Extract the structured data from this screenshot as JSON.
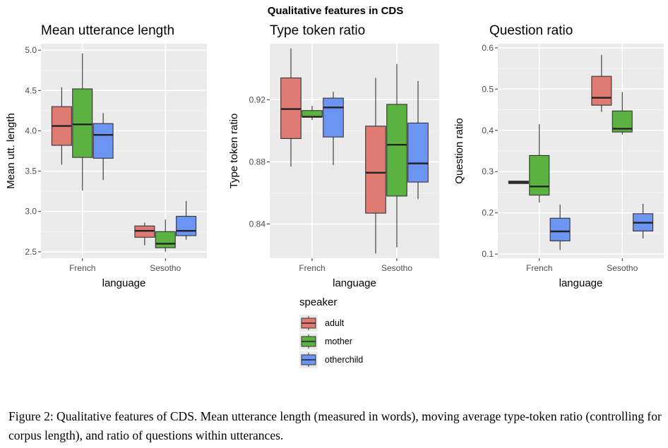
{
  "figure_title": "Qualitative features in CDS",
  "caption": "Figure 2: Qualitative features of CDS. Mean utterance length (measured in words), moving average type-token ratio (controlling for corpus length), and ratio of questions within utterances.",
  "legend": {
    "title": "speaker",
    "placement": "bottom-center",
    "items": [
      {
        "label": "adult",
        "color": "#E07B73"
      },
      {
        "label": "mother",
        "color": "#5BB240"
      },
      {
        "label": "otherchild",
        "color": "#6C94F2"
      }
    ]
  },
  "chart_data": [
    {
      "type": "box",
      "title": "Mean utterance length",
      "xlabel": "language",
      "ylabel": "Mean utt. length",
      "categories": [
        "French",
        "Sesotho"
      ],
      "ylim": [
        2.42,
        5.08
      ],
      "yticks": [
        2.5,
        3.0,
        3.5,
        4.0,
        4.5,
        5.0
      ],
      "ytick_labels": [
        "2.5",
        "3.0",
        "3.5",
        "4.0",
        "4.5",
        "5.0"
      ],
      "grid": true,
      "series": [
        {
          "name": "adult",
          "boxes": [
            {
              "min": 3.58,
              "q1": 3.82,
              "median": 4.06,
              "q3": 4.3,
              "max": 4.54
            },
            {
              "min": 2.58,
              "q1": 2.68,
              "median": 2.76,
              "q3": 2.82,
              "max": 2.86
            }
          ]
        },
        {
          "name": "mother",
          "boxes": [
            {
              "min": 3.26,
              "q1": 3.67,
              "median": 4.08,
              "q3": 4.52,
              "max": 4.96
            },
            {
              "min": 2.5,
              "q1": 2.55,
              "median": 2.6,
              "q3": 2.75,
              "max": 2.9
            }
          ]
        },
        {
          "name": "otherchild",
          "boxes": [
            {
              "min": 3.39,
              "q1": 3.66,
              "median": 3.95,
              "q3": 4.09,
              "max": 4.22
            },
            {
              "min": 2.65,
              "q1": 2.7,
              "median": 2.76,
              "q3": 2.94,
              "max": 3.13
            }
          ]
        }
      ]
    },
    {
      "type": "box",
      "title": "Type token ratio",
      "xlabel": "language",
      "ylabel": "Type token ratio",
      "categories": [
        "French",
        "Sesotho"
      ],
      "ylim": [
        0.818,
        0.956
      ],
      "yticks": [
        0.84,
        0.88,
        0.92
      ],
      "ytick_labels": [
        "0.84",
        "0.88",
        "0.92"
      ],
      "grid": true,
      "series": [
        {
          "name": "adult",
          "boxes": [
            {
              "min": 0.877,
              "q1": 0.895,
              "median": 0.914,
              "q3": 0.934,
              "max": 0.953
            },
            {
              "min": 0.821,
              "q1": 0.847,
              "median": 0.873,
              "q3": 0.903,
              "max": 0.934
            }
          ]
        },
        {
          "name": "mother",
          "boxes": [
            {
              "min": 0.907,
              "q1": 0.909,
              "median": 0.909,
              "q3": 0.913,
              "max": 0.916
            },
            {
              "min": 0.825,
              "q1": 0.858,
              "median": 0.891,
              "q3": 0.917,
              "max": 0.943
            }
          ]
        },
        {
          "name": "otherchild",
          "boxes": [
            {
              "min": 0.878,
              "q1": 0.896,
              "median": 0.915,
              "q3": 0.921,
              "max": 0.925
            },
            {
              "min": 0.856,
              "q1": 0.867,
              "median": 0.879,
              "q3": 0.905,
              "max": 0.932
            }
          ]
        }
      ]
    },
    {
      "type": "box",
      "title": "Question ratio",
      "xlabel": "language",
      "ylabel": "Question ratio",
      "categories": [
        "French",
        "Sesotho"
      ],
      "ylim": [
        0.09,
        0.61
      ],
      "yticks": [
        0.1,
        0.2,
        0.3,
        0.4,
        0.5,
        0.6
      ],
      "ytick_labels": [
        "0.1",
        "0.2",
        "0.3",
        "0.4",
        "0.5",
        "0.6"
      ],
      "grid": true,
      "series": [
        {
          "name": "adult",
          "boxes": [
            {
              "min": 0.271,
              "q1": 0.271,
              "median": 0.274,
              "q3": 0.277,
              "max": 0.277
            },
            {
              "min": 0.445,
              "q1": 0.461,
              "median": 0.479,
              "q3": 0.531,
              "max": 0.583
            }
          ]
        },
        {
          "name": "mother",
          "boxes": [
            {
              "min": 0.225,
              "q1": 0.243,
              "median": 0.264,
              "q3": 0.339,
              "max": 0.415
            },
            {
              "min": 0.39,
              "q1": 0.396,
              "median": 0.404,
              "q3": 0.447,
              "max": 0.493
            }
          ]
        },
        {
          "name": "otherchild",
          "boxes": [
            {
              "min": 0.11,
              "q1": 0.132,
              "median": 0.155,
              "q3": 0.187,
              "max": 0.22
            },
            {
              "min": 0.138,
              "q1": 0.156,
              "median": 0.176,
              "q3": 0.198,
              "max": 0.222
            }
          ]
        }
      ]
    }
  ]
}
